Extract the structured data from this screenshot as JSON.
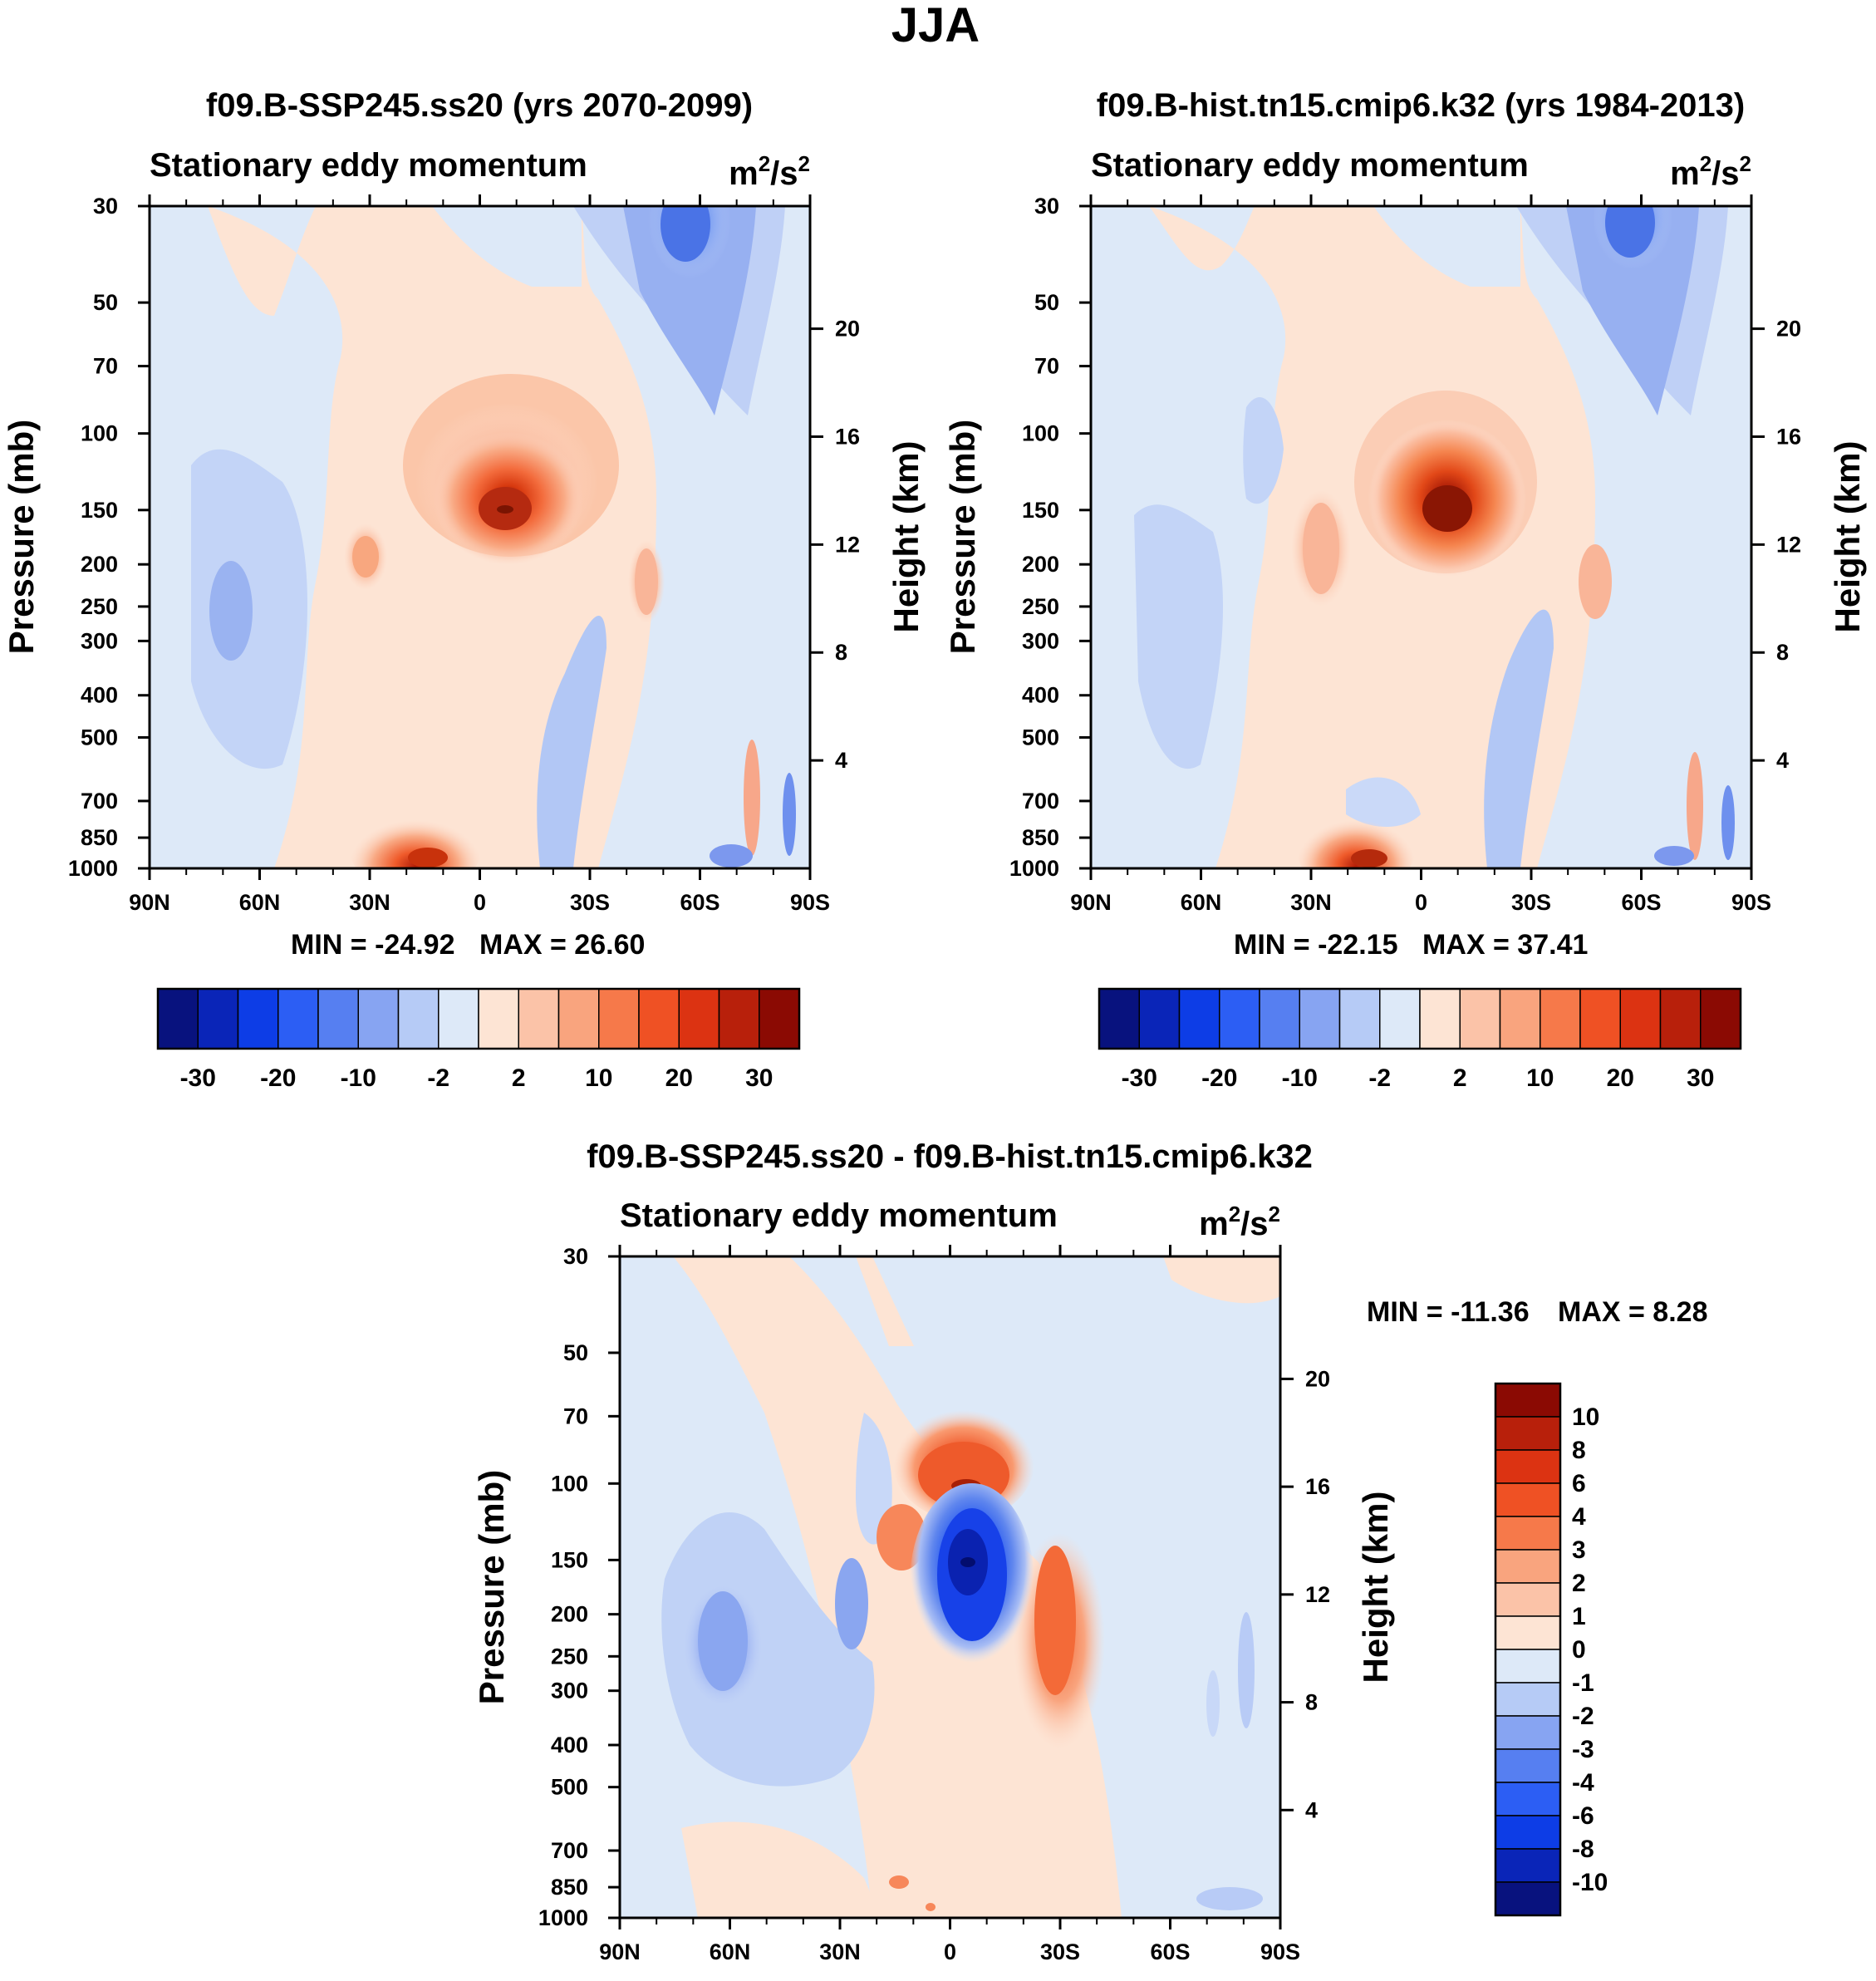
{
  "figure": {
    "title": "JJA"
  },
  "chart_data": [
    {
      "type": "heatmap",
      "title": "f09.B-SSP245.ss20 (yrs 2070-2099)",
      "left_label": "Stationary eddy momentum",
      "units": "m²/s²",
      "units_base": "m",
      "units_sup1": "2",
      "units_mid": "/s",
      "units_sup2": "2",
      "ylabel": "Pressure (mb)",
      "y2label": "Height (km)",
      "x_ticks": [
        "90N",
        "60N",
        "30N",
        "0",
        "30S",
        "60S",
        "90S"
      ],
      "y_ticks": [
        30,
        50,
        70,
        100,
        150,
        200,
        250,
        300,
        400,
        500,
        700,
        850,
        1000
      ],
      "height_ticks": [
        4,
        8,
        12,
        16,
        20
      ],
      "min_label": "MIN = -24.92",
      "max_label": "MAX =  26.60",
      "min": -24.92,
      "max": 26.6,
      "colorbar_labels": [
        "-30",
        "-20",
        "-10",
        "-2",
        "2",
        "10",
        "20",
        "30"
      ],
      "features": [
        {
          "lat": -5,
          "p": 150,
          "value": 26.6
        },
        {
          "lat": 15,
          "p": 1000,
          "value": 22
        },
        {
          "lat": 30,
          "p": 200,
          "value": 8
        },
        {
          "lat": -45,
          "p": 250,
          "value": 6
        },
        {
          "lat": -57,
          "p": 30,
          "value": -24.92
        },
        {
          "lat": 68,
          "p": 250,
          "value": -12
        },
        {
          "lat": -28,
          "p": 500,
          "value": -6
        }
      ]
    },
    {
      "type": "heatmap",
      "title": "f09.B-hist.tn15.cmip6.k32 (yrs 1984-2013)",
      "left_label": "Stationary eddy momentum",
      "units": "m²/s²",
      "units_base": "m",
      "units_sup1": "2",
      "units_mid": "/s",
      "units_sup2": "2",
      "ylabel": "Pressure (mb)",
      "y2label": "Height (km)",
      "x_ticks": [
        "90N",
        "60N",
        "30N",
        "0",
        "30S",
        "60S",
        "90S"
      ],
      "y_ticks": [
        30,
        50,
        70,
        100,
        150,
        200,
        250,
        300,
        400,
        500,
        700,
        850,
        1000
      ],
      "height_ticks": [
        4,
        8,
        12,
        16,
        20
      ],
      "min_label": "MIN = -22.15",
      "max_label": "MAX =  37.41",
      "min": -22.15,
      "max": 37.41,
      "colorbar_labels": [
        "-30",
        "-20",
        "-10",
        "-2",
        "2",
        "10",
        "20",
        "30"
      ],
      "features": [
        {
          "lat": -7,
          "p": 150,
          "value": 37.41
        },
        {
          "lat": 14,
          "p": 1000,
          "value": 20
        },
        {
          "lat": 30,
          "p": 200,
          "value": 8
        },
        {
          "lat": -47,
          "p": 200,
          "value": 5
        },
        {
          "lat": -60,
          "p": 30,
          "value": -22.15
        },
        {
          "lat": 65,
          "p": 250,
          "value": -8
        },
        {
          "lat": -30,
          "p": 400,
          "value": -6
        }
      ]
    },
    {
      "type": "heatmap",
      "title": "f09.B-SSP245.ss20 - f09.B-hist.tn15.cmip6.k32",
      "left_label": "Stationary eddy momentum",
      "units": "m²/s²",
      "units_base": "m",
      "units_sup1": "2",
      "units_mid": "/s",
      "units_sup2": "2",
      "ylabel": "Pressure (mb)",
      "y2label": "Height (km)",
      "x_ticks": [
        "90N",
        "60N",
        "30N",
        "0",
        "30S",
        "60S",
        "90S"
      ],
      "y_ticks": [
        30,
        50,
        70,
        100,
        150,
        200,
        250,
        300,
        400,
        500,
        700,
        850,
        1000
      ],
      "height_ticks": [
        4,
        8,
        12,
        16,
        20
      ],
      "min_label": "MIN = -11.36",
      "max_label": "MAX =    8.28",
      "min": -11.36,
      "max": 8.28,
      "colorbar_labels": [
        "10",
        "8",
        "6",
        "4",
        "3",
        "2",
        "1",
        "0",
        "-1",
        "-2",
        "-3",
        "-4",
        "-6",
        "-8",
        "-10"
      ],
      "features": [
        {
          "lat": -4,
          "p": 100,
          "value": 8.28
        },
        {
          "lat": -4,
          "p": 160,
          "value": -11.36
        },
        {
          "lat": -27,
          "p": 250,
          "value": 4
        },
        {
          "lat": 20,
          "p": 150,
          "value": 3
        },
        {
          "lat": 70,
          "p": 250,
          "value": -3
        },
        {
          "lat": 30,
          "p": 200,
          "value": -2
        }
      ]
    }
  ]
}
